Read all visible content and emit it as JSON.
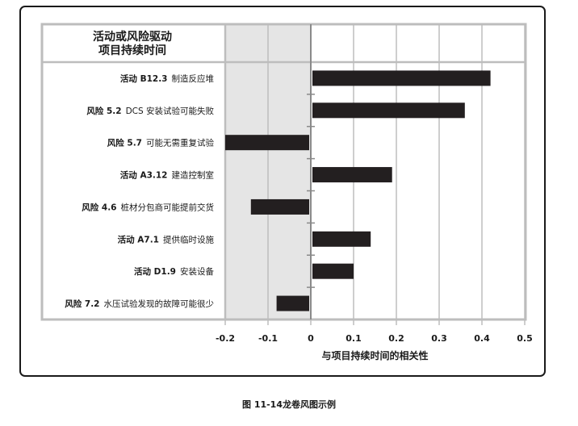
{
  "header": {
    "line1": "活动或风险驱动",
    "line2": "项目持续时间"
  },
  "caption": "图 11-14龙卷风图示例",
  "colors": {
    "bar": "#231f20",
    "grid": "#bdbdbd",
    "shade": "#e5e5e5",
    "frame": "#1a1a1a"
  },
  "chart_data": {
    "type": "bar",
    "orientation": "horizontal",
    "xlabel": "与项目持续时间的相关性",
    "xlim": [
      -0.2,
      0.5
    ],
    "xticks": [
      "-0.2",
      "-0.1",
      "0",
      "0.1",
      "0.2",
      "0.3",
      "0.4",
      "0.5"
    ],
    "negative_region_shaded": true,
    "categories": [
      {
        "id": "活动 B12.3",
        "name": "制造反应堆"
      },
      {
        "id": "风险 5.2",
        "name": "DCS 安装试验可能失败"
      },
      {
        "id": "风险 5.7",
        "name": "可能无需重复试验"
      },
      {
        "id": "活动 A3.12",
        "name": "建造控制室"
      },
      {
        "id": "风险 4.6",
        "name": "桩材分包商可能提前交货"
      },
      {
        "id": "活动 A7.1",
        "name": "提供临时设施"
      },
      {
        "id": "活动 D1.9",
        "name": "安装设备"
      },
      {
        "id": "风险 7.2",
        "name": "水压试验发现的故障可能很少"
      }
    ],
    "values": [
      0.42,
      0.36,
      -0.2,
      0.19,
      -0.14,
      0.14,
      0.1,
      -0.08
    ]
  }
}
